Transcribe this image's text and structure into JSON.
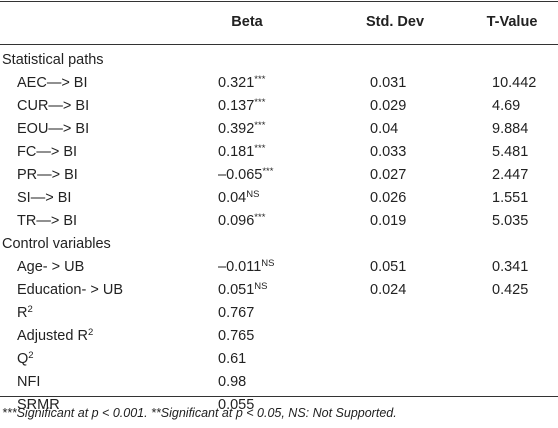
{
  "table": {
    "columns": [
      "Beta",
      "Std. Dev",
      "T-Value"
    ],
    "sections": [
      {
        "title": "Statistical paths",
        "rows": [
          {
            "label": "AEC—> BI",
            "beta": "0.321",
            "beta_sup": "***",
            "std_dev": "0.031",
            "t_value": "10.442"
          },
          {
            "label": "CUR—> BI",
            "beta": "0.137",
            "beta_sup": "***",
            "std_dev": "0.029",
            "t_value": "4.69"
          },
          {
            "label": "EOU—> BI",
            "beta": "0.392",
            "beta_sup": "***",
            "std_dev": "0.04",
            "t_value": "9.884"
          },
          {
            "label": "FC—> BI",
            "beta": "0.181",
            "beta_sup": "***",
            "std_dev": "0.033",
            "t_value": "5.481"
          },
          {
            "label": "PR—> BI",
            "beta": "–0.065",
            "beta_sup": "***",
            "std_dev": "0.027",
            "t_value": "2.447"
          },
          {
            "label": "SI—> BI",
            "beta": "0.04",
            "beta_sup": "NS",
            "std_dev": "0.026",
            "t_value": "1.551"
          },
          {
            "label": "TR—> BI",
            "beta": "0.096",
            "beta_sup": "***",
            "std_dev": "0.019",
            "t_value": "5.035"
          }
        ]
      },
      {
        "title": "Control variables",
        "rows": [
          {
            "label": "Age- > UB",
            "beta": "–0.011",
            "beta_sup": "NS",
            "std_dev": "0.051",
            "t_value": "0.341"
          },
          {
            "label": "Education- > UB",
            "beta": "0.051",
            "beta_sup": "NS",
            "std_dev": "0.024",
            "t_value": "0.425"
          },
          {
            "label": "R",
            "label_sup": "2",
            "beta": "0.767"
          },
          {
            "label": "Adjusted R",
            "label_sup": "2",
            "beta": "0.765"
          },
          {
            "label": "Q",
            "label_sup": "2",
            "beta": "0.61"
          },
          {
            "label": "NFI",
            "beta": "0.98"
          },
          {
            "label": "SRMR",
            "beta": "0.055"
          }
        ]
      }
    ],
    "footnote": "***Significant at p < 0.001. **Significant at p < 0.05, NS: Not Supported."
  }
}
